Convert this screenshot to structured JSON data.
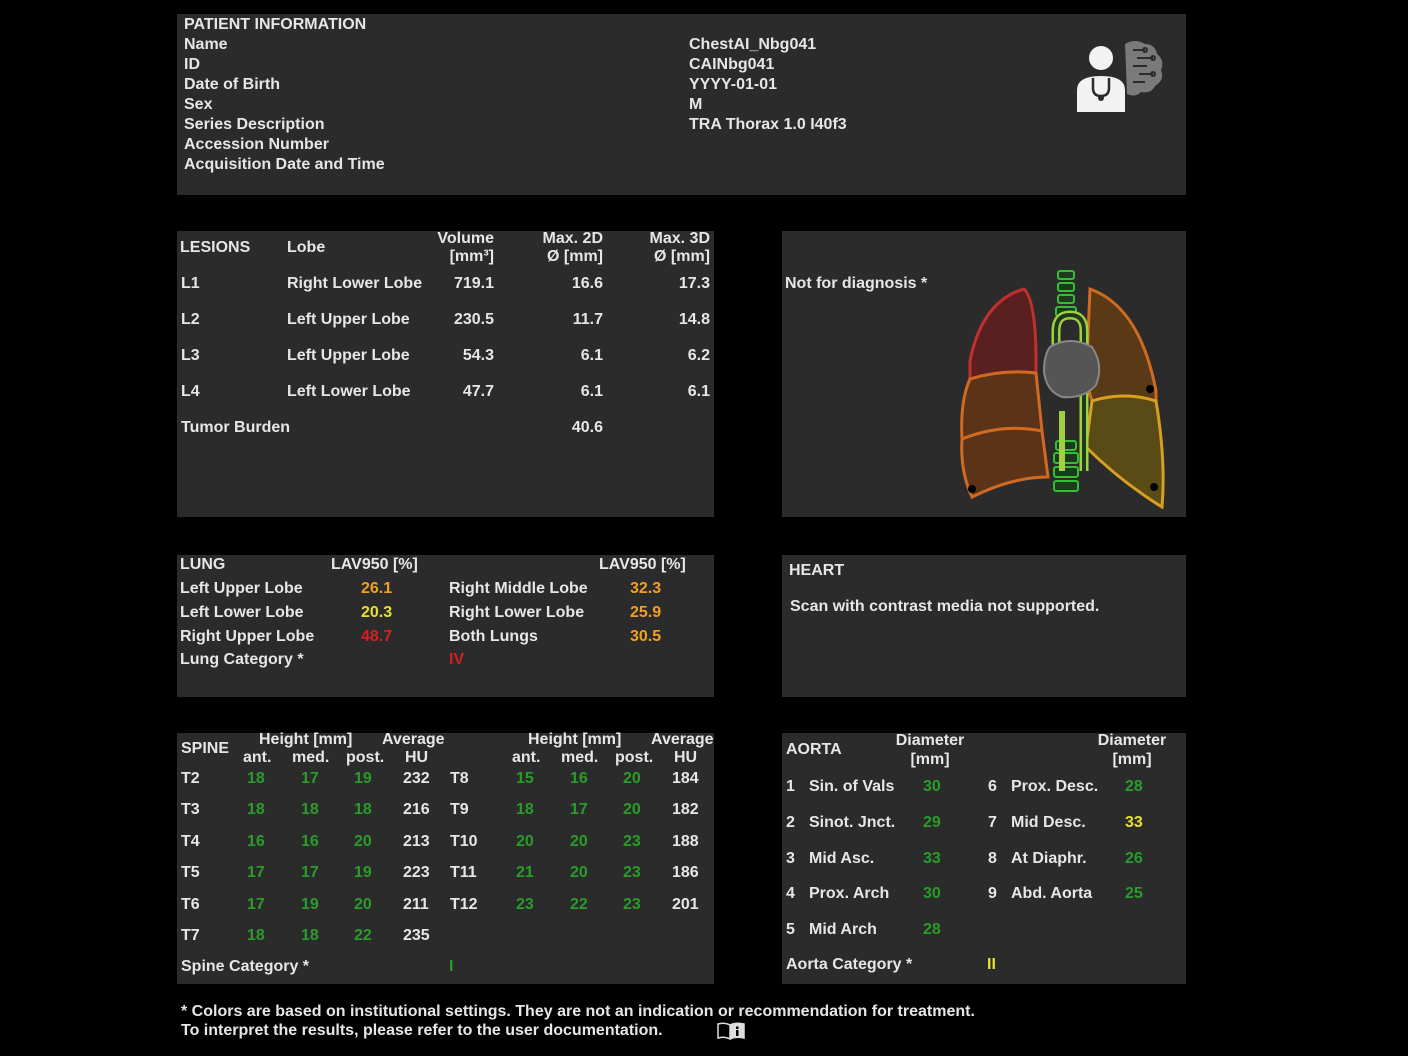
{
  "patient": {
    "title": "PATIENT INFORMATION",
    "fields": [
      {
        "label": "Name",
        "value": "ChestAI_Nbg041"
      },
      {
        "label": "ID",
        "value": "CAINbg041"
      },
      {
        "label": "Date of Birth",
        "value": "YYYY-01-01"
      },
      {
        "label": "Sex",
        "value": "M"
      },
      {
        "label": "Series Description",
        "value": "TRA Thorax  1.0  I40f3"
      },
      {
        "label": "Accession Number",
        "value": ""
      },
      {
        "label": "Acquisition Date and Time",
        "value": ""
      }
    ]
  },
  "lesions": {
    "title": "LESIONS",
    "headers": {
      "lobe": "Lobe",
      "volume": "Volume",
      "volume_unit": "[mm³]",
      "max2d": "Max. 2D",
      "max2d_unit": "Ø  [mm]",
      "max3d": "Max. 3D",
      "max3d_unit": "Ø  [mm]"
    },
    "rows": [
      {
        "id": "L1",
        "lobe": "Right Lower Lobe",
        "volume": "719.1",
        "max2d": "16.6",
        "max3d": "17.3"
      },
      {
        "id": "L2",
        "lobe": "Left Upper Lobe",
        "volume": "230.5",
        "max2d": "11.7",
        "max3d": "14.8"
      },
      {
        "id": "L3",
        "lobe": "Left Upper Lobe",
        "volume": "54.3",
        "max2d": "6.1",
        "max3d": "6.2"
      },
      {
        "id": "L4",
        "lobe": "Left Lower Lobe",
        "volume": "47.7",
        "max2d": "6.1",
        "max3d": "6.1"
      }
    ],
    "tumor_burden_label": "Tumor Burden",
    "tumor_burden_value": "40.6"
  },
  "diagram": {
    "note": "Not for diagnosis *"
  },
  "lung": {
    "title": "LUNG",
    "col_header": "LAV950 [%]",
    "left_rows": [
      {
        "label": "Left Upper Lobe",
        "value": "26.1",
        "color": "#f0a020"
      },
      {
        "label": "Left Lower Lobe",
        "value": "20.3",
        "color": "#e8e030"
      },
      {
        "label": "Right Upper Lobe",
        "value": "48.7",
        "color": "#d81e1e"
      }
    ],
    "right_rows": [
      {
        "label": "Right Middle Lobe",
        "value": "32.3",
        "color": "#f0a020"
      },
      {
        "label": "Right Lower Lobe",
        "value": "25.9",
        "color": "#f0a020"
      },
      {
        "label": "Both Lungs",
        "value": "30.5",
        "color": "#f0a020"
      }
    ],
    "category_label": "Lung Category *",
    "category_value": "IV",
    "category_color": "#d81e1e"
  },
  "heart": {
    "title": "HEART",
    "message": "Scan with contrast media not supported."
  },
  "spine": {
    "title": "SPINE",
    "headers": {
      "height": "Height [mm]",
      "average": "Average",
      "ant": "ant.",
      "med": "med.",
      "post": "post.",
      "hu": "HU"
    },
    "left_rows": [
      {
        "v": "T2",
        "ant": "18",
        "med": "17",
        "post": "19",
        "hu": "232"
      },
      {
        "v": "T3",
        "ant": "18",
        "med": "18",
        "post": "18",
        "hu": "216"
      },
      {
        "v": "T4",
        "ant": "16",
        "med": "16",
        "post": "20",
        "hu": "213"
      },
      {
        "v": "T5",
        "ant": "17",
        "med": "17",
        "post": "19",
        "hu": "223"
      },
      {
        "v": "T6",
        "ant": "17",
        "med": "19",
        "post": "20",
        "hu": "211"
      },
      {
        "v": "T7",
        "ant": "18",
        "med": "18",
        "post": "22",
        "hu": "235"
      }
    ],
    "right_rows": [
      {
        "v": "T8",
        "ant": "15",
        "med": "16",
        "post": "20",
        "hu": "184"
      },
      {
        "v": "T9",
        "ant": "18",
        "med": "17",
        "post": "20",
        "hu": "182"
      },
      {
        "v": "T10",
        "ant": "20",
        "med": "20",
        "post": "23",
        "hu": "188"
      },
      {
        "v": "T11",
        "ant": "21",
        "med": "20",
        "post": "23",
        "hu": "186"
      },
      {
        "v": "T12",
        "ant": "23",
        "med": "22",
        "post": "23",
        "hu": "201"
      }
    ],
    "category_label": "Spine Category *",
    "category_value": "I",
    "category_color": "#2a9c2a"
  },
  "aorta": {
    "title": "AORTA",
    "diameter": "Diameter",
    "unit": "[mm]",
    "left_rows": [
      {
        "n": "1",
        "label": "Sin. of Vals",
        "value": "30",
        "color": "#2a9c2a"
      },
      {
        "n": "2",
        "label": "Sinot. Jnct.",
        "value": "29",
        "color": "#2a9c2a"
      },
      {
        "n": "3",
        "label": "Mid Asc.",
        "value": "33",
        "color": "#2a9c2a"
      },
      {
        "n": "4",
        "label": "Prox. Arch",
        "value": "30",
        "color": "#2a9c2a"
      },
      {
        "n": "5",
        "label": "Mid Arch",
        "value": "28",
        "color": "#2a9c2a"
      }
    ],
    "right_rows": [
      {
        "n": "6",
        "label": "Prox. Desc.",
        "value": "28",
        "color": "#2a9c2a"
      },
      {
        "n": "7",
        "label": "Mid Desc.",
        "value": "33",
        "color": "#e8e030"
      },
      {
        "n": "8",
        "label": "At Diaphr.",
        "value": "26",
        "color": "#2a9c2a"
      },
      {
        "n": "9",
        "label": "Abd. Aorta",
        "value": "25",
        "color": "#2a9c2a"
      }
    ],
    "category_label": "Aorta Category *",
    "category_value": "II",
    "category_color": "#e8e030"
  },
  "footer": {
    "line1": "* Colors are based on institutional settings. They are not an indication or recommendation for treatment.",
    "line2": "To interpret the results, please refer to the user documentation."
  },
  "icons": {
    "logo": "doctor-brain-logo-icon",
    "documentation": "book-info-icon"
  }
}
